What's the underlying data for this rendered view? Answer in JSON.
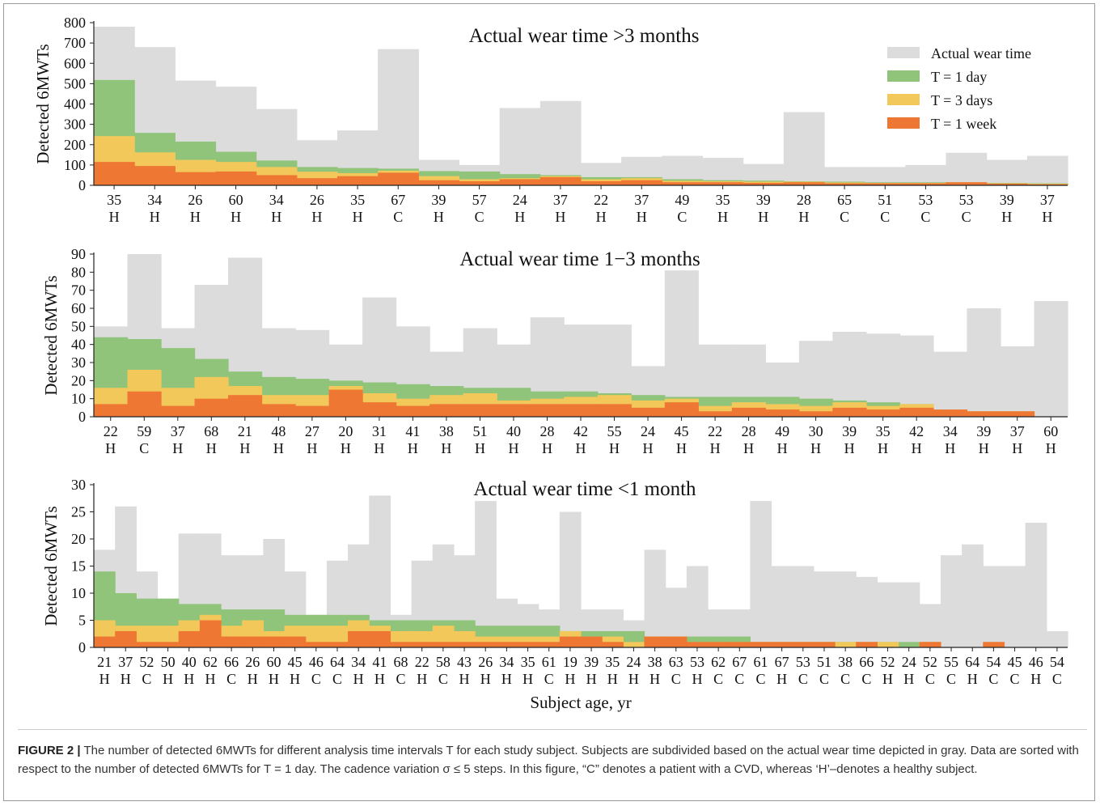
{
  "figure_label": "FIGURE 2 |",
  "caption": "The number of detected 6MWTs for different analysis time intervals T for each study subject. Subjects are subdivided based on the actual wear time depicted in gray. Data are sorted with respect to the number of detected 6MWTs for T = 1 day. The cadence variation σ ≤ 5 steps. In this figure, “C” denotes a patient with a CVD, whereas ‘H’–denotes a healthy subject.",
  "legend": [
    "Actual wear time",
    "T = 1 day",
    "T = 3 days",
    "T = 1 week"
  ],
  "colors": {
    "wear": "#dcdcdc",
    "day": "#8fc47a",
    "days3": "#f2c85a",
    "week": "#ee7733"
  },
  "chart_data": [
    {
      "type": "bar",
      "title": "Actual wear time >3 months",
      "ylabel": "Detected 6MWTs",
      "ylim": [
        0,
        800
      ],
      "yticks": [
        0,
        100,
        200,
        300,
        400,
        500,
        600,
        700,
        800
      ],
      "ages": [
        "35",
        "34",
        "26",
        "60",
        "34",
        "26",
        "35",
        "67",
        "39",
        "57",
        "24",
        "37",
        "22",
        "37",
        "49",
        "35",
        "39",
        "28",
        "65",
        "51",
        "53",
        "53",
        "39",
        "37"
      ],
      "groups": [
        "H",
        "H",
        "H",
        "H",
        "H",
        "H",
        "H",
        "C",
        "H",
        "C",
        "H",
        "H",
        "H",
        "H",
        "C",
        "H",
        "H",
        "H",
        "C",
        "C",
        "C",
        "C",
        "H",
        "H"
      ],
      "series": [
        {
          "name": "Actual wear time",
          "values": [
            780,
            680,
            515,
            485,
            375,
            222,
            270,
            670,
            125,
            100,
            380,
            415,
            110,
            140,
            145,
            135,
            105,
            360,
            90,
            90,
            100,
            160,
            125,
            145
          ]
        },
        {
          "name": "T = 1 day",
          "values": [
            518,
            258,
            215,
            165,
            122,
            90,
            85,
            82,
            70,
            68,
            55,
            50,
            40,
            40,
            30,
            25,
            23,
            20,
            18,
            15,
            15,
            15,
            12,
            10
          ]
        },
        {
          "name": "T = 3 days",
          "values": [
            242,
            162,
            125,
            115,
            90,
            67,
            60,
            72,
            45,
            30,
            35,
            45,
            30,
            35,
            22,
            20,
            18,
            18,
            14,
            12,
            12,
            15,
            10,
            8
          ]
        },
        {
          "name": "T = 1 week",
          "values": [
            115,
            95,
            65,
            68,
            50,
            35,
            45,
            62,
            25,
            20,
            30,
            40,
            20,
            25,
            15,
            15,
            12,
            15,
            10,
            10,
            10,
            15,
            8,
            5
          ]
        }
      ]
    },
    {
      "type": "bar",
      "title": "Actual wear time 1−3 months",
      "ylabel": "Detected 6MWTs",
      "ylim": [
        0,
        90
      ],
      "yticks": [
        0,
        10,
        20,
        30,
        40,
        50,
        60,
        70,
        80,
        90
      ],
      "ages": [
        "22",
        "59",
        "37",
        "68",
        "21",
        "48",
        "27",
        "20",
        "31",
        "41",
        "38",
        "51",
        "40",
        "28",
        "42",
        "55",
        "24",
        "45",
        "22",
        "28",
        "49",
        "30",
        "39",
        "35",
        "42",
        "34",
        "39",
        "37",
        "60"
      ],
      "groups": [
        "H",
        "C",
        "H",
        "H",
        "H",
        "H",
        "H",
        "H",
        "H",
        "H",
        "H",
        "H",
        "H",
        "H",
        "H",
        "H",
        "H",
        "H",
        "H",
        "H",
        "H",
        "H",
        "H",
        "H",
        "H",
        "H",
        "H",
        "H",
        "H"
      ],
      "series": [
        {
          "name": "Actual wear time",
          "values": [
            50,
            90,
            49,
            73,
            88,
            49,
            48,
            40,
            66,
            50,
            36,
            49,
            40,
            55,
            51,
            51,
            28,
            81,
            40,
            40,
            30,
            42,
            47,
            46,
            45,
            36,
            60,
            39,
            64
          ]
        },
        {
          "name": "T = 1 day",
          "values": [
            44,
            43,
            38,
            32,
            25,
            22,
            21,
            20,
            19,
            18,
            17,
            16,
            16,
            14,
            14,
            13,
            12,
            11,
            11,
            11,
            11,
            10,
            9,
            8,
            7,
            4,
            3,
            3,
            0
          ]
        },
        {
          "name": "T = 3 days",
          "values": [
            16,
            26,
            16,
            22,
            17,
            12,
            12,
            17,
            13,
            10,
            12,
            13,
            9,
            10,
            11,
            12,
            9,
            10,
            6,
            8,
            7,
            6,
            8,
            6,
            7,
            4,
            3,
            3,
            0
          ]
        },
        {
          "name": "T = 1 week",
          "values": [
            7,
            14,
            6,
            10,
            12,
            7,
            6,
            15,
            8,
            6,
            7,
            7,
            7,
            7,
            7,
            7,
            5,
            8,
            3,
            5,
            4,
            3,
            5,
            4,
            5,
            4,
            3,
            3,
            0
          ]
        }
      ]
    },
    {
      "type": "bar",
      "title": "Actual wear time <1 month",
      "ylabel": "Detected 6MWTs",
      "xlabel": "Subject age, yr",
      "ylim": [
        0,
        30
      ],
      "yticks": [
        0,
        5,
        10,
        15,
        20,
        25,
        30
      ],
      "ages": [
        "21",
        "37",
        "52",
        "50",
        "40",
        "62",
        "66",
        "26",
        "60",
        "45",
        "46",
        "64",
        "34",
        "41",
        "68",
        "22",
        "58",
        "43",
        "26",
        "34",
        "35",
        "61",
        "19",
        "39",
        "35",
        "24",
        "38",
        "63",
        "53",
        "62",
        "67",
        "61",
        "67",
        "53",
        "51",
        "38",
        "66",
        "52",
        "24",
        "52",
        "55",
        "64",
        "54",
        "45",
        "46",
        "54"
      ],
      "groups": [
        "H",
        "H",
        "C",
        "H",
        "H",
        "H",
        "C",
        "H",
        "H",
        "H",
        "C",
        "C",
        "H",
        "H",
        "C",
        "H",
        "C",
        "H",
        "H",
        "H",
        "H",
        "C",
        "H",
        "H",
        "H",
        "H",
        "H",
        "C",
        "H",
        "C",
        "C",
        "C",
        "H",
        "C",
        "C",
        "C",
        "C",
        "H",
        "H",
        "C",
        "C",
        "H",
        "C",
        "C",
        "H",
        "C"
      ],
      "series": [
        {
          "name": "Actual wear time",
          "values": [
            18,
            26,
            14,
            9,
            21,
            21,
            17,
            17,
            20,
            14,
            6,
            16,
            19,
            28,
            6,
            16,
            19,
            17,
            27,
            9,
            8,
            7,
            25,
            7,
            7,
            5,
            18,
            11,
            15,
            7,
            7,
            27,
            15,
            15,
            14,
            14,
            13,
            12,
            12,
            8,
            17,
            19,
            15,
            15,
            23,
            3
          ]
        },
        {
          "name": "T = 1 day",
          "values": [
            14,
            10,
            9,
            9,
            8,
            8,
            7,
            7,
            7,
            6,
            6,
            6,
            6,
            5,
            5,
            5,
            5,
            5,
            4,
            4,
            4,
            4,
            3,
            3,
            3,
            3,
            2,
            2,
            2,
            2,
            2,
            1,
            1,
            1,
            1,
            1,
            1,
            1,
            1,
            1,
            0,
            0,
            0,
            0,
            0,
            0
          ]
        },
        {
          "name": "T = 3 days",
          "values": [
            5,
            4,
            4,
            4,
            5,
            6,
            4,
            5,
            3,
            4,
            4,
            4,
            5,
            4,
            3,
            3,
            4,
            3,
            2,
            2,
            2,
            2,
            3,
            2,
            2,
            1,
            2,
            2,
            1,
            1,
            1,
            1,
            1,
            1,
            1,
            1,
            1,
            1,
            0,
            1,
            0,
            0,
            0,
            0,
            0,
            0
          ]
        },
        {
          "name": "T = 1 week",
          "values": [
            2,
            3,
            1,
            1,
            3,
            5,
            2,
            2,
            2,
            2,
            1,
            1,
            3,
            3,
            1,
            1,
            1,
            1,
            1,
            1,
            1,
            1,
            2,
            2,
            1,
            0,
            2,
            2,
            1,
            1,
            1,
            1,
            1,
            1,
            1,
            0,
            1,
            0,
            0,
            1,
            0,
            0,
            1,
            0,
            0,
            0
          ]
        }
      ]
    }
  ]
}
